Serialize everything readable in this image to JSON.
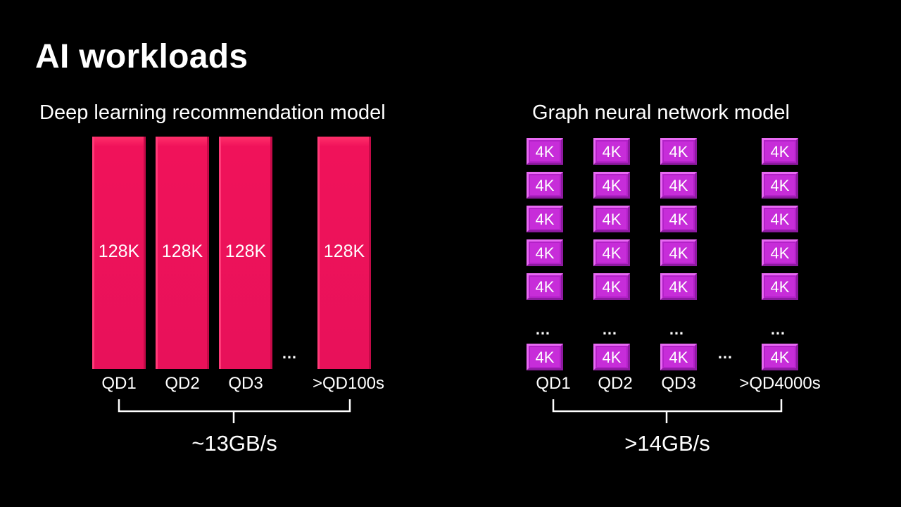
{
  "slide": {
    "title": "AI workloads"
  },
  "dlrm": {
    "heading": "Deep learning recommendation model",
    "block_size": "128K",
    "ellipsis": "…",
    "queues": [
      "QD1",
      "QD2",
      "QD3",
      ">QD100s"
    ],
    "throughput": "~13GB/s"
  },
  "gnn": {
    "heading": "Graph neural network model",
    "block_size": "4K",
    "ellipsis": "…",
    "queues": [
      "QD1",
      "QD2",
      "QD3",
      ">QD4000s"
    ],
    "throughput": ">14GB/s"
  },
  "colors": {
    "background": "#000000",
    "dlrm_bar": "#e8115a",
    "gnn_block": "#c72dd9",
    "text": "#ffffff"
  }
}
